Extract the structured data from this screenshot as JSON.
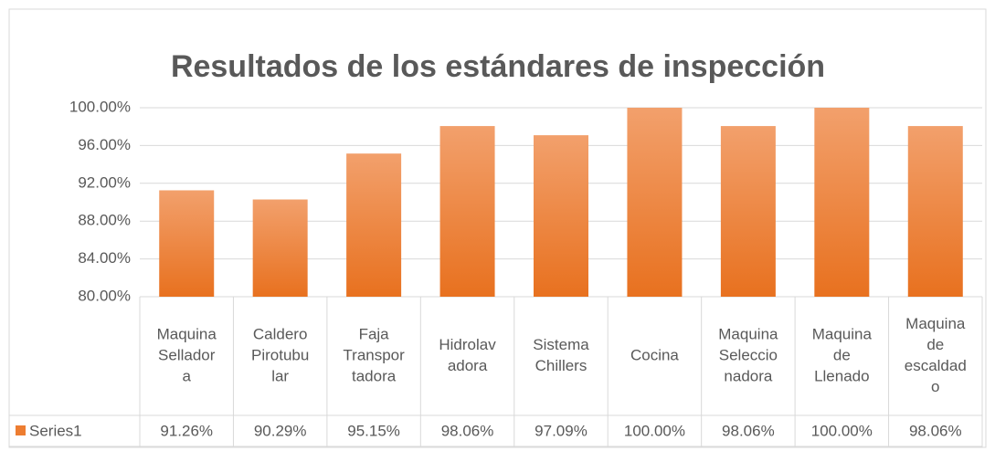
{
  "chart_data": {
    "type": "bar",
    "title": "Resultados de los estándares de inspección",
    "categories": [
      [
        "Maquina",
        "Sellador",
        "a"
      ],
      [
        "Caldero",
        "Pirotubu",
        "lar"
      ],
      [
        "Faja",
        "Transpor",
        "tadora"
      ],
      [
        "Hidrolav",
        "adora"
      ],
      [
        "Sistema",
        "Chillers"
      ],
      [
        "Cocina"
      ],
      [
        "Maquina",
        "Seleccio",
        "nadora"
      ],
      [
        "Maquina",
        "de",
        "Llenado"
      ],
      [
        "Maquina",
        "de",
        "escaldad",
        "o"
      ]
    ],
    "series": [
      {
        "name": "Series1",
        "color": "#ed7d31",
        "values": [
          91.26,
          90.29,
          95.15,
          98.06,
          97.09,
          100,
          98.06,
          100,
          98.06
        ],
        "value_labels": [
          "91.26%",
          "90.29%",
          "95.15%",
          "98.06%",
          "97.09%",
          "100.00%",
          "98.06%",
          "100.00%",
          "98.06%"
        ]
      }
    ],
    "ylim": [
      80,
      100
    ],
    "yticks": [
      {
        "value": 80,
        "label": "80.00%"
      },
      {
        "value": 84,
        "label": "84.00%"
      },
      {
        "value": 88,
        "label": "88.00%"
      },
      {
        "value": 92,
        "label": "92.00%"
      },
      {
        "value": 96,
        "label": "96.00%"
      },
      {
        "value": 100,
        "label": "100.00%"
      }
    ],
    "grid": true
  }
}
